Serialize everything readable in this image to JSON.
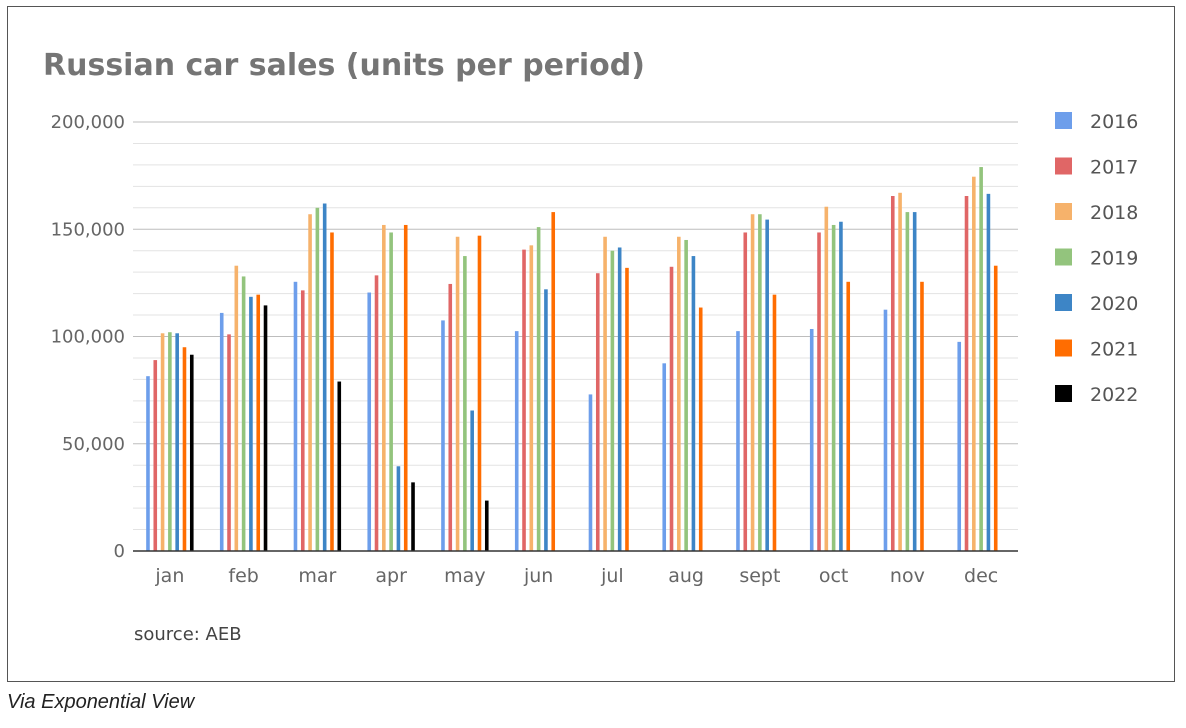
{
  "caption": "Via Exponential View",
  "chart_data": {
    "type": "bar",
    "title": "Russian car sales (units per period)",
    "source": "source: AEB",
    "xlabel": "",
    "ylabel": "",
    "ylim": [
      0,
      200000
    ],
    "yticks": [
      0,
      50000,
      100000,
      150000,
      200000
    ],
    "ytick_labels": [
      "0",
      "50,000",
      "100,000",
      "150,000",
      "200,000"
    ],
    "minor_gridlines": true,
    "legend_position": "right",
    "categories": [
      "jan",
      "feb",
      "mar",
      "apr",
      "may",
      "jun",
      "jul",
      "aug",
      "sept",
      "oct",
      "nov",
      "dec"
    ],
    "series": [
      {
        "name": "2016",
        "color": "#6d9eeb",
        "values": [
          81500,
          111000,
          125500,
          120500,
          107500,
          102500,
          73000,
          87500,
          102500,
          103500,
          112500,
          97500
        ]
      },
      {
        "name": "2017",
        "color": "#e06666",
        "values": [
          89000,
          101000,
          121500,
          128500,
          124500,
          140500,
          129500,
          132500,
          148500,
          148500,
          165500,
          165500
        ]
      },
      {
        "name": "2018",
        "color": "#f6b26b",
        "values": [
          101500,
          133000,
          157000,
          152000,
          146500,
          142500,
          146500,
          146500,
          157000,
          160500,
          167000,
          174500
        ]
      },
      {
        "name": "2019",
        "color": "#93c47d",
        "values": [
          102000,
          128000,
          160000,
          148500,
          137500,
          151000,
          140000,
          145000,
          157000,
          152000,
          158000,
          179000
        ]
      },
      {
        "name": "2020",
        "color": "#3d85c6",
        "values": [
          101500,
          118500,
          162000,
          39500,
          65500,
          122000,
          141500,
          137500,
          154500,
          153500,
          158000,
          166500
        ]
      },
      {
        "name": "2021",
        "color": "#ff6d01",
        "values": [
          95000,
          119500,
          148500,
          152000,
          147000,
          158000,
          132000,
          113500,
          119500,
          125500,
          125500,
          133000
        ]
      },
      {
        "name": "2022",
        "color": "#000000",
        "values": [
          91500,
          114500,
          79000,
          32000,
          23500,
          null,
          null,
          null,
          null,
          null,
          null,
          null
        ]
      }
    ]
  }
}
